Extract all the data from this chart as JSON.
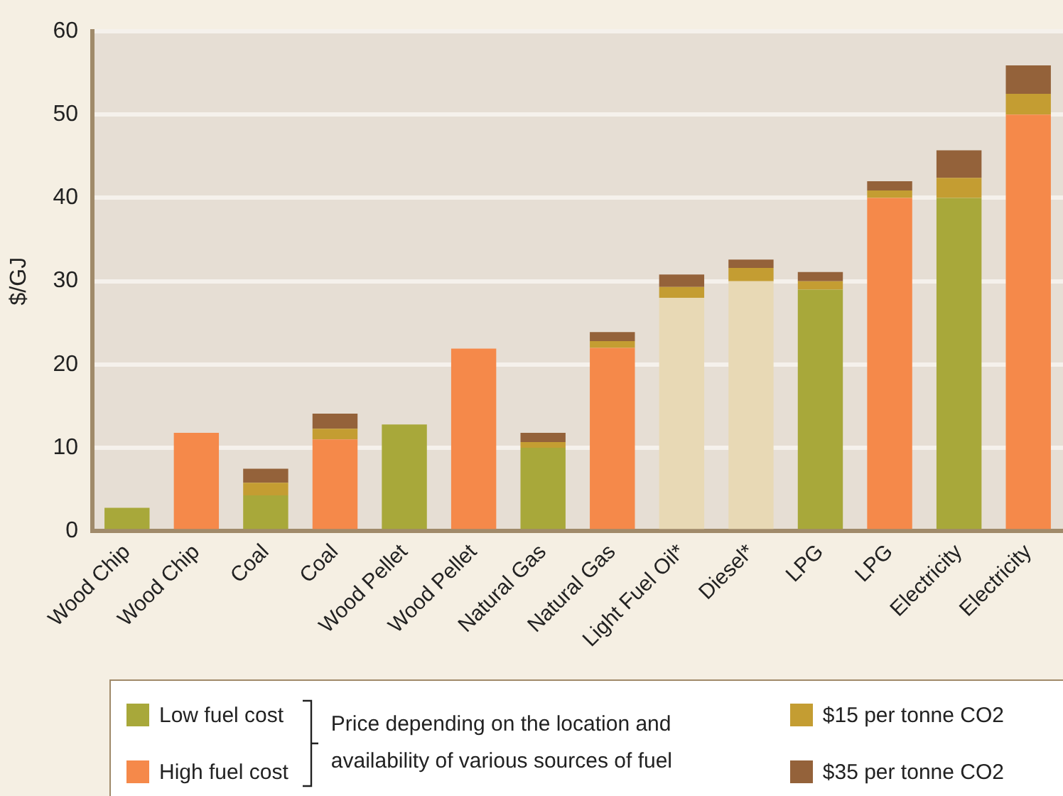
{
  "chart_data": {
    "type": "bar",
    "stacked": true,
    "ylabel": "$/GJ",
    "categories": [
      "Wood Chip",
      "Wood Chip",
      "Coal",
      "Coal",
      "Wood Pellet",
      "Wood Pellet",
      "Natural Gas",
      "Natural Gas",
      "Light Fuel Oil*",
      "Diesel*",
      "LPG",
      "LPG",
      "Electricity",
      "Electricity"
    ],
    "series": [
      {
        "name": "Low fuel cost",
        "color": "#a8a83a",
        "values": [
          2.8,
          null,
          4.3,
          null,
          12.8,
          null,
          10,
          null,
          null,
          null,
          29,
          null,
          40,
          null
        ]
      },
      {
        "name": "High fuel cost",
        "color": "#f5894a",
        "values": [
          null,
          11.8,
          null,
          11,
          null,
          21.9,
          null,
          22,
          null,
          null,
          null,
          40,
          null,
          50
        ]
      },
      {
        "color": "#e8d9b5",
        "values": [
          null,
          null,
          null,
          null,
          null,
          null,
          null,
          null,
          28,
          30,
          null,
          null,
          null,
          null
        ]
      },
      {
        "name": "$15 per tonne CO2",
        "color": "#c49d32",
        "values": [
          null,
          null,
          1.5,
          1.3,
          null,
          null,
          0.7,
          0.8,
          1.3,
          1.6,
          1.0,
          0.9,
          2.4,
          2.5
        ]
      },
      {
        "name": "$35 per tonne CO2",
        "color": "#94623a",
        "values": [
          null,
          null,
          1.7,
          1.8,
          null,
          null,
          1.1,
          1.1,
          1.5,
          1.0,
          1.1,
          1.1,
          3.3,
          3.4
        ]
      }
    ],
    "ylim": [
      0,
      60
    ],
    "yticks": [
      0,
      10,
      20,
      30,
      40,
      50,
      60
    ],
    "grid": "y",
    "legend": "bottom",
    "annotations": [
      "Price depending on the location and availability of various sources of fuel"
    ]
  }
}
